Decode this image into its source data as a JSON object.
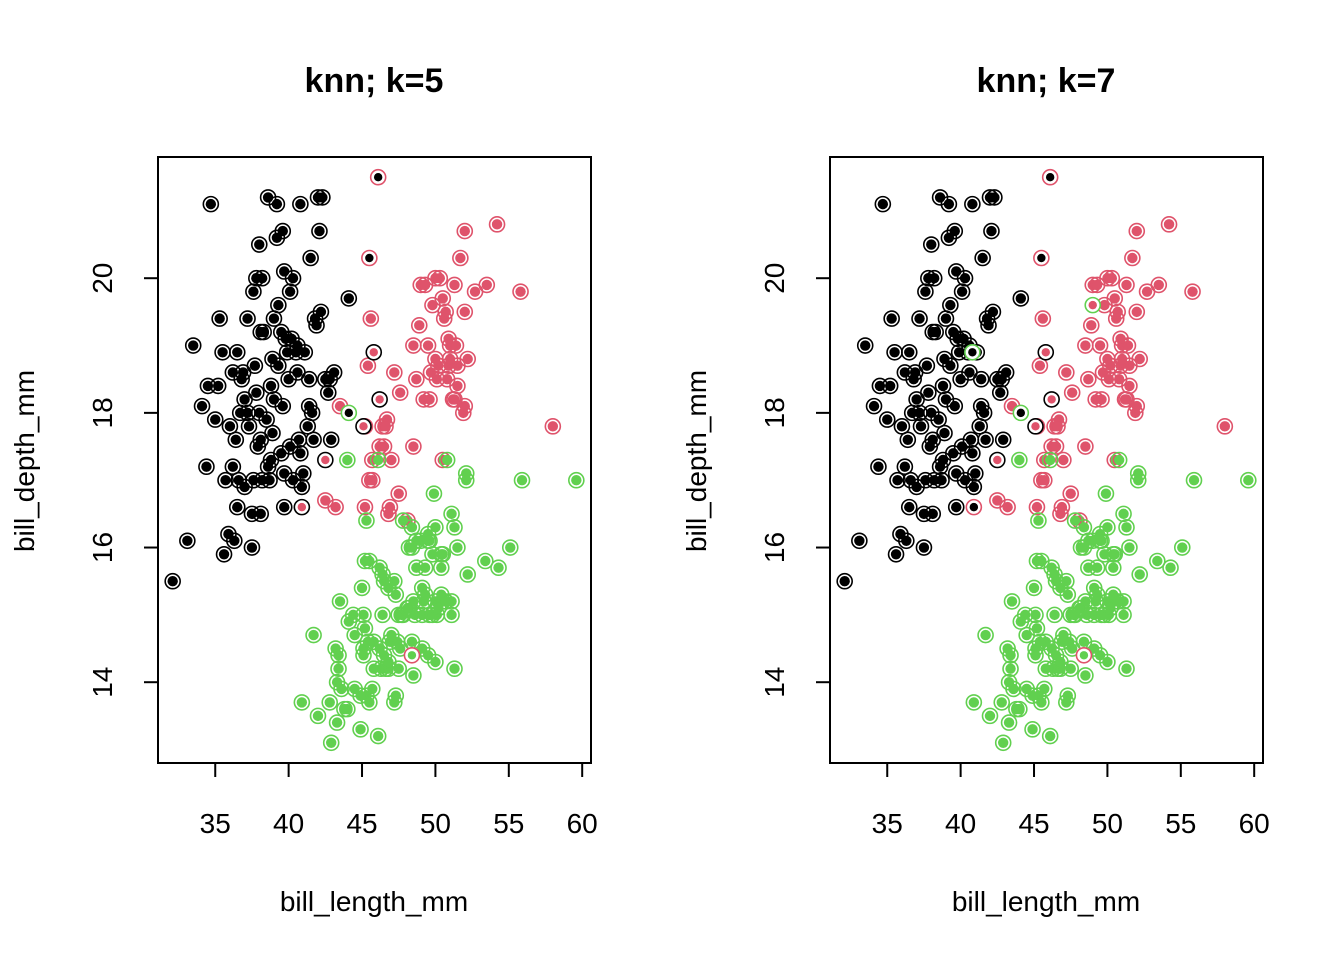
{
  "colors": {
    "adelie": "#000000",
    "chinstrap": "#DF536B",
    "gentoo": "#61D04F",
    "background": "#FFFFFF"
  },
  "chart_data": [
    {
      "type": "scatter",
      "title": "knn; k=5",
      "xlabel": "bill_length_mm",
      "ylabel": "bill_depth_mm",
      "xlim": [
        31.1,
        60.6
      ],
      "ylim": [
        12.8,
        21.8
      ],
      "xticks": [
        "35",
        "40",
        "45",
        "50",
        "55",
        "60"
      ],
      "yticks": [
        "14",
        "16",
        "18",
        "20"
      ],
      "legend": "none",
      "encoding": "outer ring = true species, inner dot = predicted species",
      "misclassified": [
        {
          "x": 46.1,
          "y": 21.5,
          "true": "chinstrap",
          "pred": "adelie"
        },
        {
          "x": 45.5,
          "y": 20.3,
          "true": "chinstrap",
          "pred": "adelie"
        },
        {
          "x": 44.1,
          "y": 18.0,
          "true": "gentoo",
          "pred": "adelie"
        },
        {
          "x": 45.8,
          "y": 18.9,
          "true": "adelie",
          "pred": "chinstrap"
        },
        {
          "x": 46.2,
          "y": 18.2,
          "true": "adelie",
          "pred": "chinstrap"
        },
        {
          "x": 45.1,
          "y": 17.8,
          "true": "adelie",
          "pred": "chinstrap"
        },
        {
          "x": 42.5,
          "y": 17.3,
          "true": "adelie",
          "pred": "chinstrap"
        },
        {
          "x": 40.9,
          "y": 16.6,
          "true": "adelie",
          "pred": "chinstrap"
        },
        {
          "x": 48.4,
          "y": 14.4,
          "true": "chinstrap",
          "pred": "gentoo"
        }
      ]
    },
    {
      "type": "scatter",
      "title": "knn; k=7",
      "xlabel": "bill_length_mm",
      "ylabel": "bill_depth_mm",
      "xlim": [
        31.1,
        60.6
      ],
      "ylim": [
        12.8,
        21.8
      ],
      "xticks": [
        "35",
        "40",
        "45",
        "50",
        "55",
        "60"
      ],
      "yticks": [
        "14",
        "16",
        "18",
        "20"
      ],
      "legend": "none",
      "encoding": "outer ring = true species, inner dot = predicted species",
      "misclassified": [
        {
          "x": 46.1,
          "y": 21.5,
          "true": "chinstrap",
          "pred": "adelie"
        },
        {
          "x": 45.5,
          "y": 20.3,
          "true": "chinstrap",
          "pred": "adelie"
        },
        {
          "x": 44.1,
          "y": 18.0,
          "true": "gentoo",
          "pred": "adelie"
        },
        {
          "x": 40.8,
          "y": 18.9,
          "true": "gentoo",
          "pred": "adelie"
        },
        {
          "x": 49.0,
          "y": 19.6,
          "true": "gentoo",
          "pred": "chinstrap"
        },
        {
          "x": 45.8,
          "y": 18.9,
          "true": "adelie",
          "pred": "chinstrap"
        },
        {
          "x": 46.2,
          "y": 18.2,
          "true": "adelie",
          "pred": "chinstrap"
        },
        {
          "x": 45.1,
          "y": 17.8,
          "true": "adelie",
          "pred": "chinstrap"
        },
        {
          "x": 42.5,
          "y": 17.3,
          "true": "adelie",
          "pred": "chinstrap"
        },
        {
          "x": 40.9,
          "y": 16.6,
          "true": "chinstrap",
          "pred": "adelie"
        },
        {
          "x": 48.4,
          "y": 14.4,
          "true": "chinstrap",
          "pred": "gentoo"
        }
      ]
    }
  ],
  "points": {
    "adelie": [
      [
        34.7,
        21.1
      ],
      [
        38.6,
        21.2
      ],
      [
        39.2,
        21.1
      ],
      [
        40.8,
        21.1
      ],
      [
        42.0,
        21.2
      ],
      [
        42.3,
        21.2
      ],
      [
        42.1,
        20.7
      ],
      [
        39.6,
        20.7
      ],
      [
        39.2,
        20.6
      ],
      [
        38.0,
        20.5
      ],
      [
        37.6,
        19.8
      ],
      [
        37.8,
        20.0
      ],
      [
        38.2,
        20.0
      ],
      [
        39.7,
        20.1
      ],
      [
        40.3,
        20.0
      ],
      [
        41.5,
        20.3
      ],
      [
        40.6,
        19.0
      ],
      [
        39.3,
        19.6
      ],
      [
        39.0,
        19.4
      ],
      [
        40.1,
        19.8
      ],
      [
        35.3,
        19.4
      ],
      [
        35.5,
        18.9
      ],
      [
        33.5,
        19.0
      ],
      [
        37.2,
        19.4
      ],
      [
        38.1,
        19.2
      ],
      [
        38.3,
        19.2
      ],
      [
        39.5,
        19.2
      ],
      [
        40.2,
        19.1
      ],
      [
        41.8,
        19.4
      ],
      [
        42.2,
        19.5
      ],
      [
        41.9,
        19.3
      ],
      [
        44.1,
        19.7
      ],
      [
        36.5,
        18.9
      ],
      [
        36.8,
        18.5
      ],
      [
        37.8,
        18.3
      ],
      [
        38.8,
        18.4
      ],
      [
        39.3,
        18.7
      ],
      [
        39.9,
        18.9
      ],
      [
        40.5,
        18.9
      ],
      [
        41.1,
        18.9
      ],
      [
        41.4,
        18.5
      ],
      [
        42.5,
        18.5
      ],
      [
        42.8,
        18.5
      ],
      [
        43.1,
        18.6
      ],
      [
        40.6,
        18.6
      ],
      [
        39.6,
        18.1
      ],
      [
        38.9,
        18.8
      ],
      [
        37.7,
        18.7
      ],
      [
        36.9,
        18.6
      ],
      [
        34.1,
        18.1
      ],
      [
        35.0,
        17.9
      ],
      [
        36.0,
        17.8
      ],
      [
        36.4,
        17.6
      ],
      [
        36.7,
        18.0
      ],
      [
        37.3,
        17.8
      ],
      [
        37.9,
        17.5
      ],
      [
        38.5,
        17.9
      ],
      [
        38.9,
        17.7
      ],
      [
        39.5,
        17.4
      ],
      [
        40.1,
        17.5
      ],
      [
        40.8,
        17.4
      ],
      [
        41.3,
        17.8
      ],
      [
        41.6,
        18.0
      ],
      [
        42.7,
        18.3
      ],
      [
        38.1,
        17.6
      ],
      [
        35.7,
        17.0
      ],
      [
        36.2,
        17.2
      ],
      [
        36.6,
        17.0
      ],
      [
        37.0,
        16.9
      ],
      [
        37.6,
        17.0
      ],
      [
        38.2,
        17.0
      ],
      [
        38.8,
        17.3
      ],
      [
        39.7,
        17.1
      ],
      [
        40.3,
        17.0
      ],
      [
        41.0,
        17.1
      ],
      [
        34.4,
        17.2
      ],
      [
        36.5,
        16.6
      ],
      [
        37.5,
        16.5
      ],
      [
        38.1,
        16.5
      ],
      [
        38.7,
        17.0
      ],
      [
        39.7,
        16.6
      ],
      [
        40.9,
        16.9
      ],
      [
        35.9,
        16.2
      ],
      [
        36.3,
        16.1
      ],
      [
        33.1,
        16.1
      ],
      [
        35.6,
        15.9
      ],
      [
        37.5,
        16.0
      ],
      [
        32.1,
        15.5
      ],
      [
        34.5,
        18.4
      ],
      [
        35.2,
        18.4
      ],
      [
        39.8,
        19.1
      ],
      [
        40.0,
        18.5
      ],
      [
        41.4,
        18.1
      ],
      [
        40.7,
        17.6
      ],
      [
        42.9,
        17.6
      ],
      [
        37.0,
        18.2
      ],
      [
        38.0,
        18.0
      ],
      [
        39.0,
        18.2
      ],
      [
        41.7,
        17.6
      ],
      [
        36.2,
        18.6
      ],
      [
        37.2,
        18.0
      ],
      [
        38.6,
        17.2
      ]
    ],
    "chinstrap": [
      [
        54.2,
        20.8
      ],
      [
        51.7,
        20.3
      ],
      [
        52.0,
        20.7
      ],
      [
        52.7,
        19.8
      ],
      [
        53.5,
        19.9
      ],
      [
        55.8,
        19.8
      ],
      [
        51.3,
        19.9
      ],
      [
        49.0,
        19.9
      ],
      [
        50.0,
        20.0
      ],
      [
        50.5,
        19.7
      ],
      [
        50.3,
        20.0
      ],
      [
        52.0,
        19.5
      ],
      [
        51.0,
        19.0
      ],
      [
        51.5,
        18.7
      ],
      [
        50.9,
        18.7
      ],
      [
        49.7,
        18.6
      ],
      [
        50.6,
        19.4
      ],
      [
        50.7,
        19.5
      ],
      [
        49.2,
        18.2
      ],
      [
        50.2,
        18.7
      ],
      [
        50.8,
        18.5
      ],
      [
        51.4,
        19.0
      ],
      [
        52.2,
        18.8
      ],
      [
        51.9,
        18.0
      ],
      [
        51.2,
        18.2
      ],
      [
        49.5,
        19.0
      ],
      [
        50.1,
        18.5
      ],
      [
        48.5,
        19.0
      ],
      [
        47.0,
        17.3
      ],
      [
        45.2,
        17.8
      ],
      [
        46.4,
        17.8
      ],
      [
        46.7,
        17.9
      ],
      [
        47.5,
        16.8
      ],
      [
        46.9,
        16.6
      ],
      [
        46.2,
        17.5
      ],
      [
        45.5,
        17.0
      ],
      [
        46.6,
        17.8
      ],
      [
        48.1,
        16.4
      ],
      [
        45.7,
        17.3
      ],
      [
        45.4,
        18.7
      ],
      [
        45.6,
        19.4
      ],
      [
        43.5,
        18.1
      ],
      [
        46.8,
        16.5
      ],
      [
        47.6,
        18.3
      ],
      [
        49.6,
        18.2
      ],
      [
        50.5,
        17.3
      ],
      [
        52.0,
        18.1
      ],
      [
        46.5,
        17.5
      ],
      [
        50.0,
        18.8
      ],
      [
        51.3,
        18.2
      ],
      [
        58.0,
        17.8
      ],
      [
        42.5,
        16.7
      ],
      [
        45.2,
        16.6
      ],
      [
        43.2,
        16.6
      ],
      [
        49.3,
        19.9
      ],
      [
        48.5,
        17.5
      ],
      [
        51.0,
        18.8
      ],
      [
        45.7,
        17.0
      ],
      [
        47.2,
        18.6
      ],
      [
        48.7,
        18.5
      ],
      [
        49.8,
        19.6
      ],
      [
        48.9,
        19.3
      ],
      [
        50.9,
        19.1
      ],
      [
        51.5,
        18.4
      ]
    ],
    "gentoo": [
      [
        59.6,
        17.0
      ],
      [
        55.9,
        17.0
      ],
      [
        52.1,
        17.1
      ],
      [
        52.1,
        17.0
      ],
      [
        50.8,
        17.3
      ],
      [
        49.9,
        16.8
      ],
      [
        51.1,
        16.5
      ],
      [
        51.3,
        16.3
      ],
      [
        46.1,
        17.3
      ],
      [
        44.0,
        17.3
      ],
      [
        45.3,
        16.4
      ],
      [
        47.8,
        16.4
      ],
      [
        48.4,
        16.3
      ],
      [
        49.3,
        15.7
      ],
      [
        49.5,
        16.2
      ],
      [
        50.0,
        16.3
      ],
      [
        50.4,
        15.9
      ],
      [
        49.1,
        15.4
      ],
      [
        49.8,
        15.9
      ],
      [
        50.5,
        15.9
      ],
      [
        49.5,
        16.1
      ],
      [
        48.2,
        16.0
      ],
      [
        48.7,
        16.1
      ],
      [
        47.3,
        15.3
      ],
      [
        46.8,
        15.4
      ],
      [
        47.2,
        15.5
      ],
      [
        50.4,
        15.7
      ],
      [
        52.2,
        15.6
      ],
      [
        53.4,
        15.8
      ],
      [
        54.3,
        15.7
      ],
      [
        55.1,
        16.0
      ],
      [
        45.2,
        15.8
      ],
      [
        45.5,
        15.8
      ],
      [
        46.2,
        15.7
      ],
      [
        45.8,
        14.6
      ],
      [
        45.1,
        14.5
      ],
      [
        46.4,
        15.0
      ],
      [
        47.5,
        15.0
      ],
      [
        48.2,
        15.1
      ],
      [
        48.6,
        15.0
      ],
      [
        49.1,
        15.0
      ],
      [
        49.6,
        15.0
      ],
      [
        50.0,
        15.2
      ],
      [
        50.5,
        15.2
      ],
      [
        51.1,
        15.0
      ],
      [
        46.6,
        14.2
      ],
      [
        45.2,
        14.8
      ],
      [
        44.9,
        13.3
      ],
      [
        46.1,
        13.2
      ],
      [
        43.3,
        13.4
      ],
      [
        42.8,
        13.7
      ],
      [
        42.9,
        13.1
      ],
      [
        43.4,
        14.4
      ],
      [
        44.5,
        13.9
      ],
      [
        45.3,
        13.8
      ],
      [
        45.1,
        14.4
      ],
      [
        44.5,
        14.7
      ],
      [
        45.5,
        13.7
      ],
      [
        46.5,
        14.4
      ],
      [
        47.4,
        14.6
      ],
      [
        48.5,
        14.1
      ],
      [
        49.5,
        14.4
      ],
      [
        46.9,
        14.6
      ],
      [
        47.7,
        15.0
      ],
      [
        48.4,
        14.6
      ],
      [
        49.2,
        15.2
      ],
      [
        50.1,
        15.0
      ],
      [
        50.4,
        15.3
      ],
      [
        51.1,
        15.2
      ],
      [
        50.0,
        14.3
      ],
      [
        51.3,
        14.2
      ],
      [
        43.2,
        14.5
      ],
      [
        43.6,
        13.9
      ],
      [
        44.0,
        13.6
      ],
      [
        43.5,
        15.2
      ],
      [
        41.7,
        14.7
      ],
      [
        44.4,
        15.0
      ],
      [
        45.1,
        15.0
      ],
      [
        45.7,
        13.9
      ],
      [
        46.3,
        14.2
      ],
      [
        45.8,
        14.2
      ],
      [
        47.2,
        13.7
      ],
      [
        47.8,
        15.0
      ],
      [
        48.5,
        15.2
      ],
      [
        49.8,
        15.0
      ],
      [
        50.7,
        15.2
      ],
      [
        42.0,
        13.5
      ],
      [
        40.9,
        13.7
      ],
      [
        43.3,
        14.0
      ],
      [
        46.2,
        14.5
      ],
      [
        46.8,
        14.2
      ],
      [
        47.6,
        14.5
      ],
      [
        48.1,
        15.1
      ],
      [
        49.0,
        16.1
      ],
      [
        48.4,
        16.0
      ],
      [
        47.0,
        14.7
      ],
      [
        45.0,
        15.4
      ],
      [
        46.5,
        15.5
      ],
      [
        48.7,
        15.7
      ],
      [
        49.6,
        16.1
      ],
      [
        46.4,
        15.6
      ],
      [
        44.9,
        13.8
      ],
      [
        43.8,
        13.6
      ],
      [
        45.4,
        14.6
      ],
      [
        46.8,
        14.3
      ],
      [
        47.3,
        13.8
      ],
      [
        49.1,
        14.5
      ],
      [
        50.2,
        15.1
      ],
      [
        51.5,
        16.0
      ],
      [
        43.4,
        14.2
      ],
      [
        44.1,
        14.9
      ],
      [
        47.5,
        14.2
      ],
      [
        49.3,
        15.3
      ]
    ]
  }
}
